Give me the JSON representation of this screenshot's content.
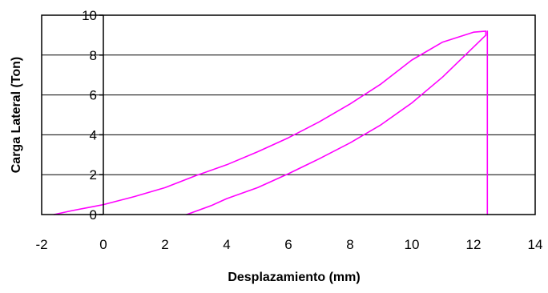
{
  "chart_data": {
    "type": "line",
    "title": "",
    "xlabel": "Desplazamiento (mm)",
    "ylabel": "Carga Lateral (Ton)",
    "xlim": [
      -2,
      14
    ],
    "ylim": [
      0,
      10
    ],
    "x_ticks": [
      -2,
      0,
      2,
      4,
      6,
      8,
      10,
      12,
      14
    ],
    "y_ticks": [
      0,
      2,
      4,
      6,
      8,
      10
    ],
    "grid": "horizontal",
    "legend": "none",
    "series_color": "#ff00ff",
    "series": [
      {
        "x": [
          -1.6,
          -1.0,
          -0.5,
          0.0,
          1.0,
          2.0,
          3.0,
          4.0,
          5.0,
          6.0,
          7.0,
          8.0,
          9.0,
          10.0,
          11.0,
          12.0,
          12.4,
          12.4,
          11.0,
          10.0,
          9.0,
          8.0,
          7.0,
          6.0,
          5.0,
          4.0,
          3.5,
          2.7
        ],
        "y": [
          0.0,
          0.2,
          0.35,
          0.5,
          0.9,
          1.35,
          1.95,
          2.5,
          3.15,
          3.85,
          4.65,
          5.55,
          6.55,
          7.75,
          8.65,
          9.15,
          9.2,
          9.0,
          6.9,
          5.6,
          4.5,
          3.6,
          2.8,
          2.05,
          1.35,
          0.8,
          0.45,
          0.0
        ]
      },
      {
        "x": [
          12.45,
          12.45
        ],
        "y": [
          9.2,
          0.0
        ]
      }
    ]
  }
}
